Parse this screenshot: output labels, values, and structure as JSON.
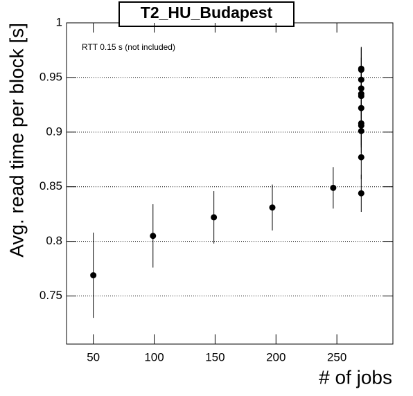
{
  "chart_data": {
    "type": "scatter",
    "title": "T2_HU_Budapest",
    "annotation": "RTT 0.15 s (not included)",
    "x_label": "# of jobs",
    "y_label": "Avg. read time per block [s]",
    "x": [
      50,
      99,
      149,
      197,
      247,
      270,
      270,
      270,
      270,
      270,
      270,
      270,
      270,
      270,
      270,
      270,
      270
    ],
    "values": [
      0.769,
      0.805,
      0.822,
      0.831,
      0.849,
      0.958,
      0.957,
      0.948,
      0.94,
      0.935,
      0.933,
      0.922,
      0.908,
      0.906,
      0.901,
      0.877,
      0.844
    ],
    "errors": [
      0.039,
      0.029,
      0.024,
      0.021,
      0.019,
      0.02,
      0.02,
      0.02,
      0.02,
      0.02,
      0.02,
      0.02,
      0.02,
      0.02,
      0.02,
      0.02,
      0.017
    ],
    "color": "#000000",
    "xlim": [
      28,
      296
    ],
    "ylim": [
      0.706,
      1.0
    ],
    "xticks": [
      50,
      100,
      150,
      200,
      250
    ],
    "yticks": [
      0.75,
      0.8,
      0.85,
      0.9,
      0.95,
      1
    ],
    "grid": "y"
  }
}
